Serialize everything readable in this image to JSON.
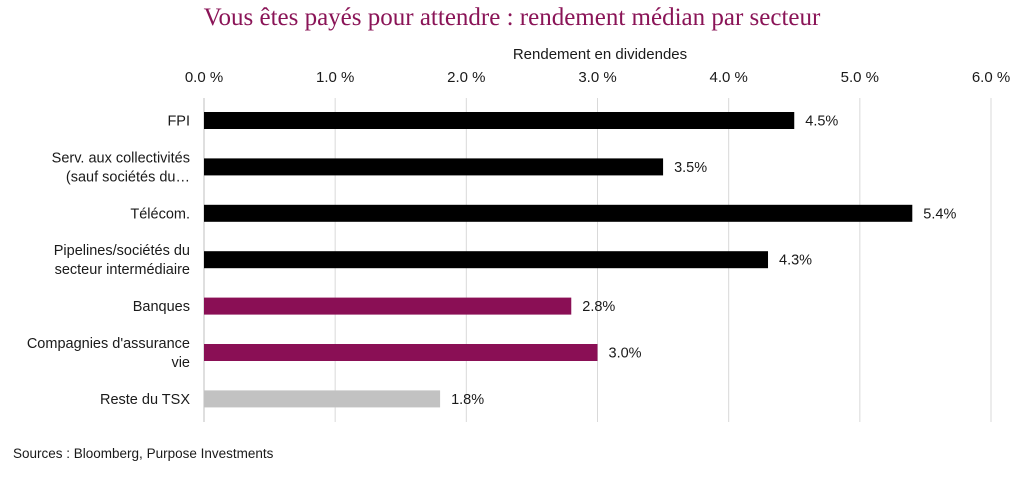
{
  "chart_data": {
    "type": "bar",
    "orientation": "horizontal",
    "title": "Vous êtes payés pour attendre : rendement médian par secteur",
    "xlabel": "Rendement en dividendes",
    "ylabel": "",
    "xlim": [
      0,
      6
    ],
    "x_ticks": [
      "0.0 %",
      "1.0 %",
      "2.0 %",
      "3.0 %",
      "4.0 %",
      "5.0 %",
      "6.0 %"
    ],
    "x_axis_position": "top",
    "grid": true,
    "categories": [
      [
        "FPI"
      ],
      [
        "Serv. aux collectivités",
        "(sauf sociétés du…"
      ],
      [
        "Télécom."
      ],
      [
        "Pipelines/sociétés du",
        "secteur intermédiaire"
      ],
      [
        "Banques"
      ],
      [
        "Compagnies d'assurance",
        "vie"
      ],
      [
        "Reste du TSX"
      ]
    ],
    "values": [
      4.5,
      3.5,
      5.4,
      4.3,
      2.8,
      3.0,
      1.8
    ],
    "value_labels": [
      "4.5%",
      "3.5%",
      "5.4%",
      "4.3%",
      "2.8%",
      "3.0%",
      "1.8%"
    ],
    "bar_colors": [
      "#000000",
      "#000000",
      "#000000",
      "#000000",
      "#8a0f55",
      "#8a0f55",
      "#c2c2c2"
    ]
  },
  "footer": {
    "source": "Sources : Bloomberg, Purpose Investments"
  }
}
